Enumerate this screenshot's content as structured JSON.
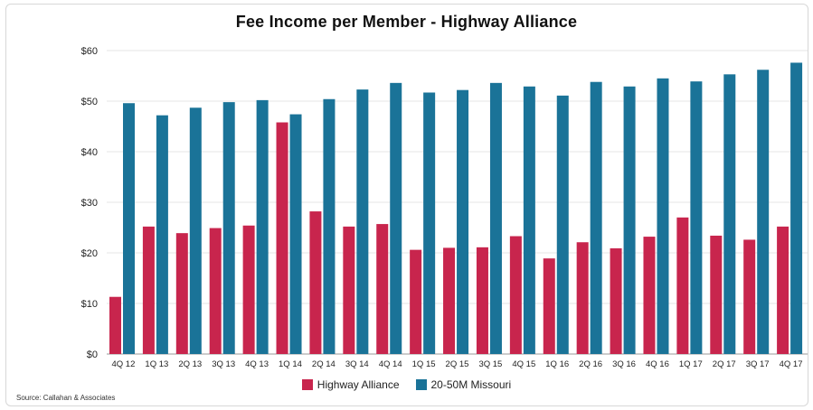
{
  "chart_data": {
    "type": "bar",
    "title": "Fee Income per Member - Highway Alliance",
    "xlabel": "",
    "ylabel": "",
    "ylim": [
      0,
      60
    ],
    "yticks": [
      "$0",
      "$10",
      "$20",
      "$30",
      "$40",
      "$50",
      "$60"
    ],
    "categories": [
      "4Q 12",
      "1Q 13",
      "2Q 13",
      "3Q 13",
      "4Q 13",
      "1Q 14",
      "2Q 14",
      "3Q 14",
      "4Q 14",
      "1Q 15",
      "2Q 15",
      "3Q 15",
      "4Q 15",
      "1Q 16",
      "2Q 16",
      "3Q 16",
      "4Q 16",
      "1Q 17",
      "2Q 17",
      "3Q 17",
      "4Q 17"
    ],
    "series": [
      {
        "name": "Highway Alliance",
        "color": "#c8254d",
        "values": [
          11.3,
          25.2,
          23.9,
          24.9,
          25.4,
          45.8,
          28.2,
          25.2,
          25.7,
          20.6,
          21.0,
          21.1,
          23.3,
          18.9,
          22.1,
          20.9,
          23.2,
          27.0,
          23.4,
          22.6,
          25.2
        ]
      },
      {
        "name": "20-50M Missouri",
        "color": "#1a7398",
        "values": [
          49.6,
          47.2,
          48.7,
          49.8,
          50.2,
          47.4,
          50.4,
          52.3,
          53.6,
          51.7,
          52.2,
          53.6,
          52.9,
          51.1,
          53.8,
          52.9,
          54.5,
          53.9,
          55.3,
          56.2,
          57.6
        ]
      }
    ],
    "grid": false,
    "legend_position": "bottom-center"
  },
  "legend": {
    "items": [
      {
        "label": "Highway Alliance",
        "color": "#c8254d"
      },
      {
        "label": "20-50M Missouri",
        "color": "#1a7398"
      }
    ]
  },
  "source": "Source: Callahan & Associates"
}
